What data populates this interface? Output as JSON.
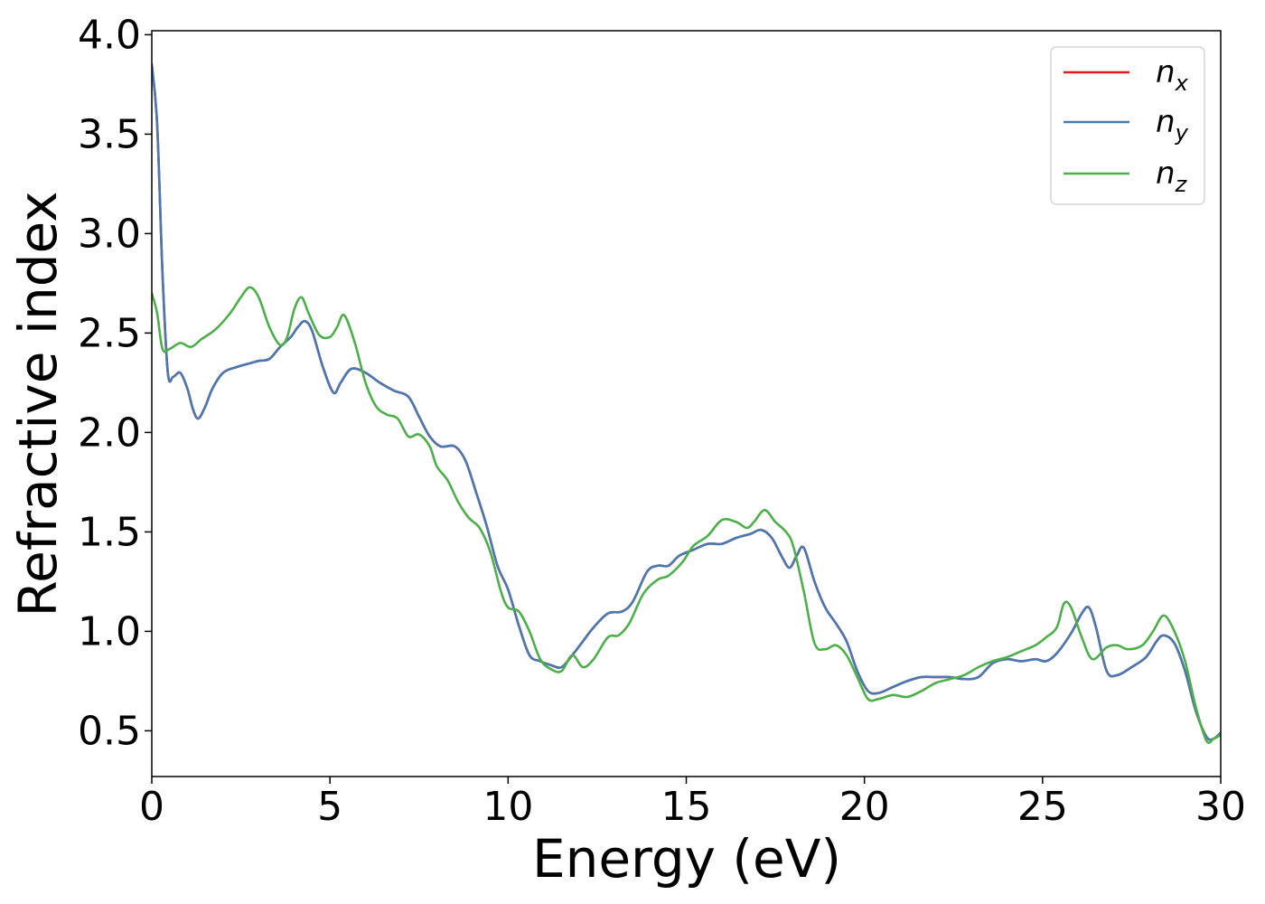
{
  "chart_data": {
    "type": "line",
    "title": "",
    "xlabel": "Energy (eV)",
    "ylabel": "Refractive index",
    "xlim": [
      0,
      30
    ],
    "ylim": [
      0.27,
      4.02
    ],
    "xticks": [
      0,
      5,
      10,
      15,
      20,
      25,
      30
    ],
    "xtick_labels": [
      "0",
      "5",
      "10",
      "15",
      "20",
      "25",
      "30"
    ],
    "yticks": [
      0.5,
      1.0,
      1.5,
      2.0,
      2.5,
      3.0,
      3.5,
      4.0
    ],
    "ytick_labels": [
      "0.5",
      "1.0",
      "1.5",
      "2.0",
      "2.5",
      "3.0",
      "3.5",
      "4.0"
    ],
    "grid": false,
    "legend_position": "top-right",
    "series": [
      {
        "name": "n_x",
        "legend_base": "n",
        "legend_sub": "x",
        "color": "#e41a1c",
        "points": [
          [
            0,
            3.85
          ],
          [
            0.15,
            3.55
          ],
          [
            0.3,
            2.8
          ],
          [
            0.45,
            2.3
          ],
          [
            0.6,
            2.28
          ],
          [
            0.8,
            2.3
          ],
          [
            1.0,
            2.22
          ],
          [
            1.15,
            2.12
          ],
          [
            1.3,
            2.07
          ],
          [
            1.5,
            2.13
          ],
          [
            1.7,
            2.22
          ],
          [
            2.0,
            2.3
          ],
          [
            2.4,
            2.33
          ],
          [
            2.8,
            2.35
          ],
          [
            3.0,
            2.36
          ],
          [
            3.3,
            2.37
          ],
          [
            3.6,
            2.43
          ],
          [
            3.9,
            2.48
          ],
          [
            4.1,
            2.53
          ],
          [
            4.3,
            2.56
          ],
          [
            4.5,
            2.51
          ],
          [
            4.8,
            2.33
          ],
          [
            5.1,
            2.2
          ],
          [
            5.3,
            2.25
          ],
          [
            5.6,
            2.32
          ],
          [
            6.0,
            2.3
          ],
          [
            6.4,
            2.25
          ],
          [
            6.8,
            2.21
          ],
          [
            7.2,
            2.18
          ],
          [
            7.5,
            2.08
          ],
          [
            7.8,
            1.98
          ],
          [
            8.1,
            1.93
          ],
          [
            8.5,
            1.93
          ],
          [
            8.8,
            1.86
          ],
          [
            9.1,
            1.7
          ],
          [
            9.4,
            1.53
          ],
          [
            9.7,
            1.33
          ],
          [
            10.0,
            1.21
          ],
          [
            10.3,
            1.03
          ],
          [
            10.6,
            0.88
          ],
          [
            10.9,
            0.85
          ],
          [
            11.2,
            0.83
          ],
          [
            11.5,
            0.82
          ],
          [
            11.8,
            0.88
          ],
          [
            12.1,
            0.95
          ],
          [
            12.4,
            1.02
          ],
          [
            12.8,
            1.09
          ],
          [
            13.2,
            1.1
          ],
          [
            13.5,
            1.15
          ],
          [
            13.9,
            1.3
          ],
          [
            14.2,
            1.33
          ],
          [
            14.5,
            1.33
          ],
          [
            14.8,
            1.38
          ],
          [
            15.2,
            1.41
          ],
          [
            15.6,
            1.44
          ],
          [
            16.0,
            1.44
          ],
          [
            16.4,
            1.47
          ],
          [
            16.8,
            1.49
          ],
          [
            17.1,
            1.51
          ],
          [
            17.4,
            1.47
          ],
          [
            17.7,
            1.37
          ],
          [
            17.9,
            1.32
          ],
          [
            18.1,
            1.38
          ],
          [
            18.3,
            1.42
          ],
          [
            18.6,
            1.25
          ],
          [
            18.9,
            1.12
          ],
          [
            19.2,
            1.04
          ],
          [
            19.5,
            0.95
          ],
          [
            19.8,
            0.8
          ],
          [
            20.1,
            0.7
          ],
          [
            20.4,
            0.69
          ],
          [
            20.8,
            0.72
          ],
          [
            21.2,
            0.75
          ],
          [
            21.6,
            0.77
          ],
          [
            22.0,
            0.77
          ],
          [
            22.4,
            0.77
          ],
          [
            22.8,
            0.76
          ],
          [
            23.2,
            0.77
          ],
          [
            23.6,
            0.84
          ],
          [
            24.0,
            0.86
          ],
          [
            24.4,
            0.85
          ],
          [
            24.8,
            0.86
          ],
          [
            25.1,
            0.85
          ],
          [
            25.4,
            0.89
          ],
          [
            25.8,
            0.99
          ],
          [
            26.1,
            1.09
          ],
          [
            26.3,
            1.12
          ],
          [
            26.5,
            1.02
          ],
          [
            26.8,
            0.8
          ],
          [
            27.1,
            0.78
          ],
          [
            27.5,
            0.82
          ],
          [
            27.9,
            0.87
          ],
          [
            28.2,
            0.95
          ],
          [
            28.4,
            0.98
          ],
          [
            28.7,
            0.94
          ],
          [
            29.0,
            0.8
          ],
          [
            29.3,
            0.6
          ],
          [
            29.6,
            0.47
          ],
          [
            29.8,
            0.46
          ],
          [
            30.0,
            0.49
          ]
        ]
      },
      {
        "name": "n_y",
        "legend_base": "n",
        "legend_sub": "y",
        "color": "#4a78b0",
        "points": [
          [
            0,
            3.85
          ],
          [
            0.15,
            3.55
          ],
          [
            0.3,
            2.8
          ],
          [
            0.45,
            2.3
          ],
          [
            0.6,
            2.28
          ],
          [
            0.8,
            2.3
          ],
          [
            1.0,
            2.22
          ],
          [
            1.15,
            2.12
          ],
          [
            1.3,
            2.07
          ],
          [
            1.5,
            2.13
          ],
          [
            1.7,
            2.22
          ],
          [
            2.0,
            2.3
          ],
          [
            2.4,
            2.33
          ],
          [
            2.8,
            2.35
          ],
          [
            3.0,
            2.36
          ],
          [
            3.3,
            2.37
          ],
          [
            3.6,
            2.43
          ],
          [
            3.9,
            2.48
          ],
          [
            4.1,
            2.53
          ],
          [
            4.3,
            2.56
          ],
          [
            4.5,
            2.51
          ],
          [
            4.8,
            2.33
          ],
          [
            5.1,
            2.2
          ],
          [
            5.3,
            2.25
          ],
          [
            5.6,
            2.32
          ],
          [
            6.0,
            2.3
          ],
          [
            6.4,
            2.25
          ],
          [
            6.8,
            2.21
          ],
          [
            7.2,
            2.18
          ],
          [
            7.5,
            2.08
          ],
          [
            7.8,
            1.98
          ],
          [
            8.1,
            1.93
          ],
          [
            8.5,
            1.93
          ],
          [
            8.8,
            1.86
          ],
          [
            9.1,
            1.7
          ],
          [
            9.4,
            1.53
          ],
          [
            9.7,
            1.33
          ],
          [
            10.0,
            1.21
          ],
          [
            10.3,
            1.03
          ],
          [
            10.6,
            0.88
          ],
          [
            10.9,
            0.85
          ],
          [
            11.2,
            0.83
          ],
          [
            11.5,
            0.82
          ],
          [
            11.8,
            0.88
          ],
          [
            12.1,
            0.95
          ],
          [
            12.4,
            1.02
          ],
          [
            12.8,
            1.09
          ],
          [
            13.2,
            1.1
          ],
          [
            13.5,
            1.15
          ],
          [
            13.9,
            1.3
          ],
          [
            14.2,
            1.33
          ],
          [
            14.5,
            1.33
          ],
          [
            14.8,
            1.38
          ],
          [
            15.2,
            1.41
          ],
          [
            15.6,
            1.44
          ],
          [
            16.0,
            1.44
          ],
          [
            16.4,
            1.47
          ],
          [
            16.8,
            1.49
          ],
          [
            17.1,
            1.51
          ],
          [
            17.4,
            1.47
          ],
          [
            17.7,
            1.37
          ],
          [
            17.9,
            1.32
          ],
          [
            18.1,
            1.38
          ],
          [
            18.3,
            1.42
          ],
          [
            18.6,
            1.25
          ],
          [
            18.9,
            1.12
          ],
          [
            19.2,
            1.04
          ],
          [
            19.5,
            0.95
          ],
          [
            19.8,
            0.8
          ],
          [
            20.1,
            0.7
          ],
          [
            20.4,
            0.69
          ],
          [
            20.8,
            0.72
          ],
          [
            21.2,
            0.75
          ],
          [
            21.6,
            0.77
          ],
          [
            22.0,
            0.77
          ],
          [
            22.4,
            0.77
          ],
          [
            22.8,
            0.76
          ],
          [
            23.2,
            0.77
          ],
          [
            23.6,
            0.84
          ],
          [
            24.0,
            0.86
          ],
          [
            24.4,
            0.85
          ],
          [
            24.8,
            0.86
          ],
          [
            25.1,
            0.85
          ],
          [
            25.4,
            0.89
          ],
          [
            25.8,
            0.99
          ],
          [
            26.1,
            1.09
          ],
          [
            26.3,
            1.12
          ],
          [
            26.5,
            1.02
          ],
          [
            26.8,
            0.8
          ],
          [
            27.1,
            0.78
          ],
          [
            27.5,
            0.82
          ],
          [
            27.9,
            0.87
          ],
          [
            28.2,
            0.95
          ],
          [
            28.4,
            0.98
          ],
          [
            28.7,
            0.94
          ],
          [
            29.0,
            0.8
          ],
          [
            29.3,
            0.6
          ],
          [
            29.6,
            0.47
          ],
          [
            29.8,
            0.46
          ],
          [
            30.0,
            0.49
          ]
        ]
      },
      {
        "name": "n_z",
        "legend_base": "n",
        "legend_sub": "z",
        "color": "#4daf4a",
        "points": [
          [
            0,
            2.7
          ],
          [
            0.15,
            2.6
          ],
          [
            0.3,
            2.42
          ],
          [
            0.5,
            2.42
          ],
          [
            0.8,
            2.45
          ],
          [
            1.1,
            2.43
          ],
          [
            1.4,
            2.47
          ],
          [
            1.8,
            2.52
          ],
          [
            2.2,
            2.6
          ],
          [
            2.5,
            2.68
          ],
          [
            2.75,
            2.73
          ],
          [
            3.0,
            2.68
          ],
          [
            3.3,
            2.53
          ],
          [
            3.6,
            2.44
          ],
          [
            3.8,
            2.48
          ],
          [
            4.0,
            2.62
          ],
          [
            4.2,
            2.68
          ],
          [
            4.4,
            2.6
          ],
          [
            4.7,
            2.49
          ],
          [
            5.0,
            2.48
          ],
          [
            5.2,
            2.53
          ],
          [
            5.4,
            2.59
          ],
          [
            5.7,
            2.45
          ],
          [
            6.0,
            2.25
          ],
          [
            6.3,
            2.13
          ],
          [
            6.6,
            2.09
          ],
          [
            6.9,
            2.07
          ],
          [
            7.2,
            1.98
          ],
          [
            7.5,
            1.99
          ],
          [
            7.8,
            1.93
          ],
          [
            8.0,
            1.83
          ],
          [
            8.3,
            1.76
          ],
          [
            8.6,
            1.65
          ],
          [
            8.9,
            1.57
          ],
          [
            9.2,
            1.52
          ],
          [
            9.5,
            1.4
          ],
          [
            9.8,
            1.2
          ],
          [
            10.0,
            1.12
          ],
          [
            10.3,
            1.1
          ],
          [
            10.6,
            1.0
          ],
          [
            10.9,
            0.86
          ],
          [
            11.2,
            0.81
          ],
          [
            11.5,
            0.8
          ],
          [
            11.8,
            0.88
          ],
          [
            12.1,
            0.82
          ],
          [
            12.4,
            0.86
          ],
          [
            12.8,
            0.97
          ],
          [
            13.1,
            0.98
          ],
          [
            13.4,
            1.04
          ],
          [
            13.8,
            1.19
          ],
          [
            14.2,
            1.26
          ],
          [
            14.5,
            1.28
          ],
          [
            14.9,
            1.35
          ],
          [
            15.2,
            1.43
          ],
          [
            15.6,
            1.48
          ],
          [
            16.0,
            1.56
          ],
          [
            16.4,
            1.55
          ],
          [
            16.7,
            1.52
          ],
          [
            16.9,
            1.55
          ],
          [
            17.2,
            1.61
          ],
          [
            17.5,
            1.55
          ],
          [
            17.8,
            1.5
          ],
          [
            18.0,
            1.43
          ],
          [
            18.3,
            1.2
          ],
          [
            18.6,
            0.94
          ],
          [
            18.9,
            0.91
          ],
          [
            19.2,
            0.93
          ],
          [
            19.5,
            0.88
          ],
          [
            19.8,
            0.77
          ],
          [
            20.1,
            0.66
          ],
          [
            20.4,
            0.66
          ],
          [
            20.8,
            0.68
          ],
          [
            21.2,
            0.67
          ],
          [
            21.6,
            0.7
          ],
          [
            22.0,
            0.74
          ],
          [
            22.4,
            0.76
          ],
          [
            22.8,
            0.78
          ],
          [
            23.2,
            0.82
          ],
          [
            23.6,
            0.85
          ],
          [
            24.0,
            0.87
          ],
          [
            24.4,
            0.9
          ],
          [
            24.8,
            0.93
          ],
          [
            25.1,
            0.97
          ],
          [
            25.4,
            1.02
          ],
          [
            25.6,
            1.14
          ],
          [
            25.8,
            1.12
          ],
          [
            26.1,
            0.97
          ],
          [
            26.4,
            0.86
          ],
          [
            26.8,
            0.92
          ],
          [
            27.1,
            0.93
          ],
          [
            27.4,
            0.91
          ],
          [
            27.8,
            0.93
          ],
          [
            28.1,
            1.0
          ],
          [
            28.4,
            1.08
          ],
          [
            28.7,
            1.0
          ],
          [
            29.0,
            0.85
          ],
          [
            29.3,
            0.62
          ],
          [
            29.6,
            0.45
          ],
          [
            29.8,
            0.46
          ],
          [
            30.0,
            0.48
          ]
        ]
      }
    ]
  }
}
